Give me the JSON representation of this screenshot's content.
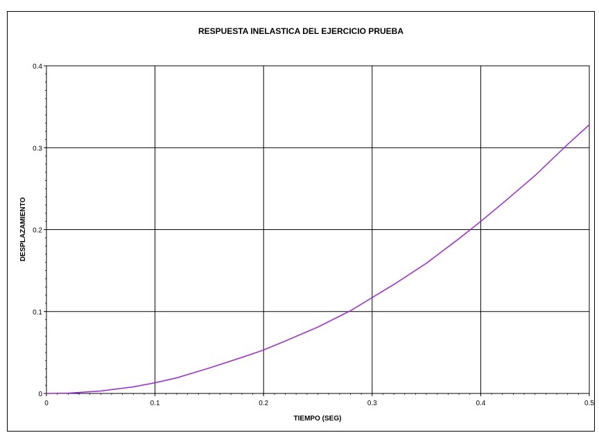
{
  "chart_data": {
    "type": "line",
    "title": "RESPUESTA INELASTICA DEL EJERCICIO PRUEBA",
    "xlabel": "TIEMPO (SEG)",
    "ylabel": "DESPLAZAMIENTO",
    "xlim": [
      0,
      0.5
    ],
    "ylim": [
      0,
      0.4
    ],
    "x_ticks": [
      "0",
      "0.1",
      "0.2",
      "0.3",
      "0.4",
      "0.5"
    ],
    "y_ticks": [
      "0",
      "0.1",
      "0.2",
      "0.3",
      "0.4"
    ],
    "grid": true,
    "legend": "none",
    "series": [
      {
        "color": "#9b1fe8",
        "x": [
          0,
          0.02,
          0.05,
          0.08,
          0.1,
          0.12,
          0.15,
          0.18,
          0.2,
          0.22,
          0.25,
          0.28,
          0.3,
          0.32,
          0.35,
          0.38,
          0.4,
          0.42,
          0.45,
          0.48,
          0.5
        ],
        "y": [
          0,
          0.0003,
          0.003,
          0.008,
          0.013,
          0.019,
          0.031,
          0.044,
          0.053,
          0.064,
          0.081,
          0.101,
          0.117,
          0.133,
          0.159,
          0.189,
          0.21,
          0.232,
          0.266,
          0.304,
          0.328
        ]
      }
    ]
  }
}
